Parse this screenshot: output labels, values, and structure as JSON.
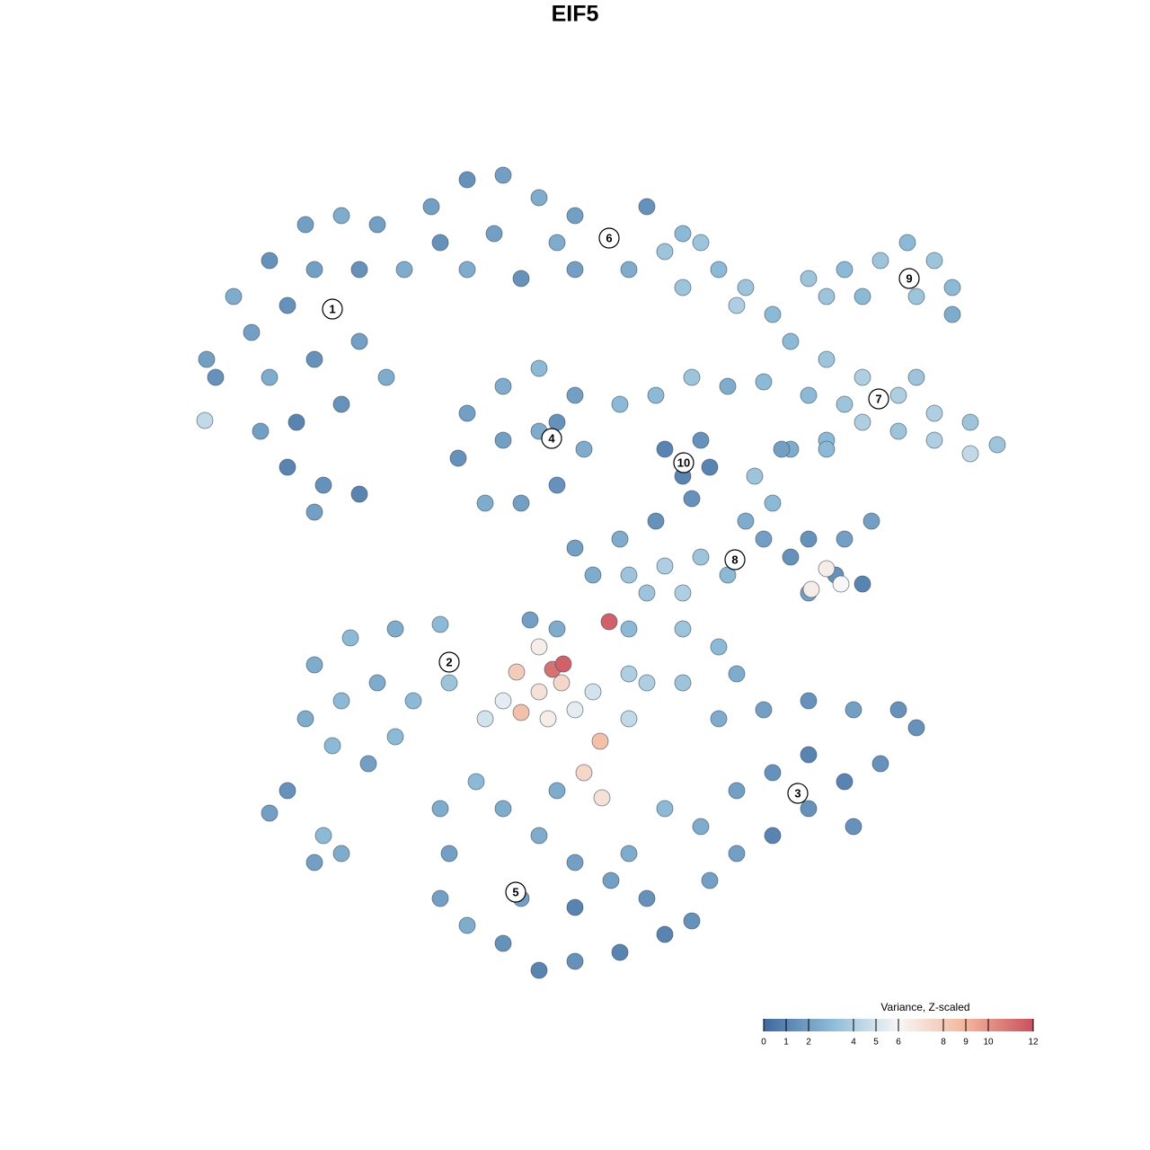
{
  "chart_data": {
    "type": "scatter",
    "title": "EIF5",
    "xlim": [
      0,
      93
    ],
    "ylim": [
      0,
      90.5
    ],
    "x": [
      3,
      6,
      10,
      14,
      18,
      22,
      25,
      20,
      15,
      12,
      8,
      4,
      10,
      15,
      20,
      23,
      18,
      13,
      9,
      12,
      16,
      20,
      15,
      2.8,
      28,
      32,
      36,
      40,
      44,
      48,
      52,
      56,
      50,
      44,
      38,
      32,
      29,
      35,
      42,
      54,
      58,
      60,
      63,
      66,
      56,
      62,
      70,
      74,
      78,
      81,
      84,
      86,
      86,
      82,
      76,
      72,
      68,
      72,
      76,
      80,
      84,
      88,
      91,
      88,
      84,
      80,
      76,
      72,
      68,
      70,
      74,
      82,
      49,
      53,
      57,
      61,
      65,
      32,
      36,
      40,
      44,
      45,
      42,
      38,
      34,
      31,
      36,
      40,
      42,
      54,
      58,
      56,
      57,
      59,
      64,
      66,
      63,
      65,
      68,
      70,
      73,
      76,
      74,
      70,
      77,
      67,
      72,
      72,
      70.3,
      73.6,
      50,
      54,
      58,
      61,
      56,
      52,
      44,
      49,
      53,
      46,
      50,
      56,
      60,
      62,
      56,
      50,
      42,
      39,
      37.5,
      40,
      42.5,
      38,
      41,
      44,
      46,
      46.8,
      45,
      47,
      41.5,
      42.7,
      47.8,
      40,
      36,
      34,
      50,
      52,
      15,
      19,
      24,
      29,
      30,
      26,
      22,
      18,
      14,
      17,
      21,
      24,
      10,
      12,
      16,
      18,
      15,
      60,
      65,
      70,
      75,
      80,
      82,
      78,
      74,
      70,
      66,
      62,
      59,
      58,
      62,
      66,
      70,
      75,
      29,
      30,
      29,
      32,
      36,
      40,
      44,
      49,
      54,
      57,
      52,
      48,
      44,
      40,
      36,
      33,
      38,
      44,
      50,
      54,
      42
    ],
    "y": [
      69,
      76,
      80,
      84,
      85,
      84,
      79,
      79,
      79,
      75,
      72,
      67,
      67,
      69,
      71,
      67,
      64,
      62,
      61,
      57,
      55,
      54,
      52,
      62.2,
      86,
      89,
      89.5,
      87,
      85,
      82.5,
      86,
      83,
      79,
      79,
      78,
      79,
      82,
      83,
      82,
      81,
      82,
      79,
      77,
      74,
      77,
      75,
      78,
      79,
      80,
      82,
      80,
      77,
      74,
      76,
      76,
      76,
      71,
      69,
      67,
      65,
      63,
      62,
      59.5,
      58.5,
      60,
      61,
      62,
      60,
      59,
      65,
      64,
      67,
      64,
      65,
      67,
      66,
      66.5,
      63,
      66,
      68,
      65,
      59,
      55,
      53,
      53,
      58,
      60,
      61,
      62,
      59,
      60,
      56,
      53.5,
      57,
      56,
      53,
      51,
      49,
      47,
      43,
      45,
      44,
      49,
      49,
      51,
      59,
      59,
      45.7,
      43.4,
      44,
      45,
      46,
      47,
      45,
      43,
      43,
      48,
      49,
      51,
      45,
      39,
      39,
      37,
      34,
      33,
      34,
      39,
      40,
      34.2,
      32,
      33,
      29.7,
      29,
      30,
      32,
      26.5,
      23,
      20.2,
      34.5,
      35.1,
      39.8,
      37,
      31,
      29,
      29,
      33,
      35,
      38,
      39,
      39.5,
      33,
      31,
      33,
      31,
      29,
      26,
      24,
      27,
      18.5,
      21,
      16,
      14,
      13,
      29,
      30,
      31,
      30,
      30,
      28,
      24,
      22,
      19,
      16,
      14,
      11,
      17,
      21,
      23,
      25,
      17,
      19,
      14,
      9,
      6,
      4,
      1,
      2,
      3,
      5,
      6.5,
      9,
      11,
      13,
      16,
      19,
      22,
      9,
      8,
      14,
      19,
      21
    ],
    "values": [
      2,
      2.5,
      1.5,
      2,
      2.5,
      2,
      2.5,
      1.5,
      2,
      1.5,
      2,
      1.5,
      2.5,
      1.5,
      2,
      2.5,
      1.5,
      1,
      2,
      1,
      1.5,
      1,
      2,
      4.5,
      2,
      1.5,
      2,
      2.5,
      2,
      2.5,
      1.5,
      3,
      2.5,
      2,
      1.5,
      2.5,
      1.5,
      2,
      2.5,
      3.5,
      3.5,
      3,
      3.5,
      3,
      3.5,
      4,
      3.5,
      3,
      3.5,
      3,
      3.5,
      3,
      2.5,
      3.5,
      3,
      3.5,
      3,
      3.5,
      4,
      4,
      4,
      3.5,
      3.5,
      4.5,
      4,
      3.5,
      4,
      3,
      2.5,
      3,
      3.5,
      3.5,
      3,
      3,
      3.5,
      2.5,
      3,
      2,
      2.5,
      3,
      2,
      2.5,
      1.5,
      2,
      2.5,
      1.5,
      2,
      2.5,
      1.5,
      1,
      1.5,
      1,
      1.5,
      1,
      3.5,
      3,
      2.5,
      2,
      1.5,
      2,
      1.5,
      1,
      2,
      1.5,
      2,
      2,
      3,
      6.5,
      6.5,
      6,
      3.5,
      4,
      3.5,
      3,
      4,
      3.5,
      2,
      2.5,
      1.5,
      2.5,
      3,
      3.5,
      3,
      2.5,
      3.5,
      4,
      2.5,
      2,
      8,
      7,
      7.5,
      8.5,
      6.5,
      5.5,
      5,
      8.5,
      7.5,
      7,
      11,
      11.5,
      11.5,
      6.5,
      5.5,
      5,
      4.5,
      4,
      2.5,
      3,
      2.5,
      3,
      3.5,
      3,
      2.5,
      3,
      2.5,
      3,
      2,
      3,
      2,
      1.5,
      3,
      2.5,
      2,
      2.5,
      2,
      1.5,
      2,
      1.5,
      1.5,
      1.5,
      1,
      1.5,
      1,
      2,
      2,
      2.5,
      2,
      1.5,
      1,
      1.5,
      2.5,
      2,
      2,
      2.5,
      1.5,
      1,
      1.5,
      1,
      1,
      1.5,
      1.5,
      2,
      2,
      2.5,
      2.5,
      3,
      2,
      1,
      2.5,
      3,
      2.5
    ],
    "clusters": [
      {
        "label": "1",
        "x": 17,
        "y": 74.6
      },
      {
        "label": "2",
        "x": 30,
        "y": 35.3
      },
      {
        "label": "3",
        "x": 68.8,
        "y": 20.7
      },
      {
        "label": "4",
        "x": 41.4,
        "y": 60.2
      },
      {
        "label": "5",
        "x": 37.4,
        "y": 9.7
      },
      {
        "label": "6",
        "x": 47.8,
        "y": 82.5
      },
      {
        "label": "7",
        "x": 77.8,
        "y": 64.6
      },
      {
        "label": "8",
        "x": 61.8,
        "y": 46.7
      },
      {
        "label": "9",
        "x": 81.2,
        "y": 78
      },
      {
        "label": "10",
        "x": 56.1,
        "y": 57.5
      }
    ],
    "colorbar": {
      "title": "Variance, Z-scaled",
      "lim": [
        0,
        12
      ],
      "ticks": [
        0,
        1,
        2,
        4,
        5,
        6,
        8,
        9,
        10,
        12
      ],
      "colorscale": [
        [
          0,
          "#40689f"
        ],
        [
          3,
          "#8cbad6"
        ],
        [
          6,
          "#f7f7f7"
        ],
        [
          9,
          "#f3b59b"
        ],
        [
          12,
          "#c9505e"
        ]
      ]
    }
  }
}
